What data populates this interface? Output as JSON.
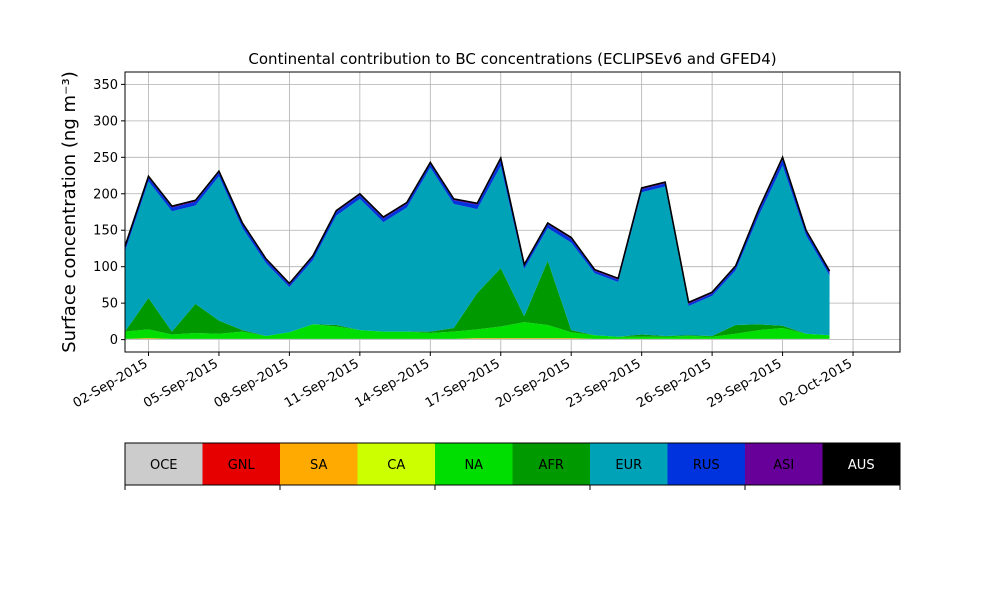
{
  "chart_data": {
    "type": "area",
    "title": "Continental contribution to BC concentrations (ECLIPSEv6 and GFED4)",
    "ylabel": "Surface concentration (ng m⁻³)",
    "xlabel": "",
    "x_dates": [
      "2015-09-01",
      "2015-09-02",
      "2015-09-03",
      "2015-09-04",
      "2015-09-05",
      "2015-09-06",
      "2015-09-07",
      "2015-09-08",
      "2015-09-09",
      "2015-09-10",
      "2015-09-11",
      "2015-09-12",
      "2015-09-13",
      "2015-09-14",
      "2015-09-15",
      "2015-09-16",
      "2015-09-17",
      "2015-09-18",
      "2015-09-19",
      "2015-09-20",
      "2015-09-21",
      "2015-09-22",
      "2015-09-23",
      "2015-09-24",
      "2015-09-25",
      "2015-09-26",
      "2015-09-27",
      "2015-09-28",
      "2015-09-29",
      "2015-09-30",
      "2015-10-01"
    ],
    "xlim": [
      "2015-09-01",
      "2015-10-04"
    ],
    "ylim": [
      -17,
      367
    ],
    "xticks": [
      "02-Sep-2015",
      "05-Sep-2015",
      "08-Sep-2015",
      "11-Sep-2015",
      "14-Sep-2015",
      "17-Sep-2015",
      "20-Sep-2015",
      "23-Sep-2015",
      "26-Sep-2015",
      "29-Sep-2015",
      "02-Oct-2015"
    ],
    "xtick_dates": [
      "2015-09-02",
      "2015-09-05",
      "2015-09-08",
      "2015-09-11",
      "2015-09-14",
      "2015-09-17",
      "2015-09-20",
      "2015-09-23",
      "2015-09-26",
      "2015-09-29",
      "2015-10-02"
    ],
    "yticks": [
      0,
      50,
      100,
      150,
      200,
      250,
      300,
      350
    ],
    "grid": true,
    "stacked": true,
    "series": [
      {
        "name": "OCE",
        "color": "#cccccc",
        "values": [
          1,
          1,
          1,
          1,
          1,
          1,
          1,
          1,
          1,
          1,
          1,
          1,
          1,
          1,
          1,
          1,
          1,
          1,
          1,
          1,
          1,
          1,
          1,
          1,
          1,
          1,
          1,
          1,
          1,
          1,
          1
        ]
      },
      {
        "name": "GNL",
        "color": "#e60000",
        "values": [
          0,
          0,
          0,
          0,
          0,
          0,
          0,
          0,
          0,
          0,
          0,
          0,
          0,
          0,
          0,
          0,
          0,
          0,
          0,
          0,
          0,
          0,
          0,
          0,
          0,
          0,
          0,
          0,
          0,
          0,
          0
        ]
      },
      {
        "name": "SA",
        "color": "#ffaa00",
        "values": [
          0,
          1,
          0,
          0,
          0,
          0,
          0,
          0,
          0,
          0,
          0,
          0,
          0,
          0,
          0,
          1,
          1,
          1,
          1,
          1,
          0,
          0,
          0,
          0,
          0,
          0,
          0,
          0,
          0,
          0,
          0
        ]
      },
      {
        "name": "CA",
        "color": "#ccff00",
        "values": [
          0,
          0,
          0,
          0,
          0,
          0,
          0,
          0,
          0,
          0,
          0,
          0,
          0,
          0,
          0,
          0,
          0,
          0,
          0,
          0,
          0,
          0,
          0,
          0,
          0,
          0,
          0,
          0,
          0,
          0,
          0
        ]
      },
      {
        "name": "NA",
        "color": "#00dd00",
        "values": [
          10,
          12,
          6,
          8,
          7,
          10,
          4,
          9,
          20,
          17,
          12,
          10,
          10,
          8,
          10,
          12,
          16,
          22,
          18,
          8,
          5,
          3,
          3,
          3,
          4,
          3,
          7,
          12,
          15,
          7,
          5
        ]
      },
      {
        "name": "AFR",
        "color": "#009900",
        "values": [
          0,
          43,
          4,
          40,
          18,
          2,
          0,
          0,
          0,
          2,
          0,
          0,
          0,
          2,
          5,
          50,
          80,
          8,
          88,
          3,
          0,
          0,
          3,
          1,
          1,
          1,
          12,
          8,
          3,
          0,
          0
        ]
      },
      {
        "name": "EUR",
        "color": "#00a2b8",
        "values": [
          110,
          160,
          165,
          135,
          198,
          140,
          100,
          62,
          88,
          150,
          180,
          150,
          170,
          225,
          170,
          115,
          140,
          65,
          45,
          120,
          85,
          75,
          195,
          205,
          40,
          55,
          75,
          150,
          220,
          135,
          82
        ]
      },
      {
        "name": "RUS",
        "color": "#0033dd",
        "values": [
          5,
          5,
          5,
          5,
          5,
          5,
          4,
          3,
          4,
          5,
          5,
          5,
          5,
          5,
          5,
          6,
          8,
          4,
          5,
          5,
          3,
          3,
          4,
          4,
          3,
          3,
          4,
          6,
          8,
          5,
          4
        ]
      },
      {
        "name": "ASI",
        "color": "#660099",
        "values": [
          2,
          2,
          2,
          2,
          2,
          2,
          2,
          2,
          2,
          2,
          2,
          2,
          2,
          2,
          2,
          2,
          3,
          2,
          2,
          2,
          2,
          2,
          2,
          2,
          2,
          2,
          2,
          3,
          3,
          2,
          2
        ]
      },
      {
        "name": "AUS",
        "color": "#000000",
        "values": [
          0,
          0,
          0,
          0,
          0,
          0,
          0,
          0,
          0,
          0,
          0,
          0,
          0,
          0,
          0,
          0,
          0,
          0,
          0,
          0,
          0,
          0,
          0,
          0,
          0,
          0,
          0,
          0,
          0,
          0,
          0
        ]
      }
    ],
    "legend": {
      "placement": "below-chart",
      "orientation": "horizontal-colorbar"
    }
  }
}
